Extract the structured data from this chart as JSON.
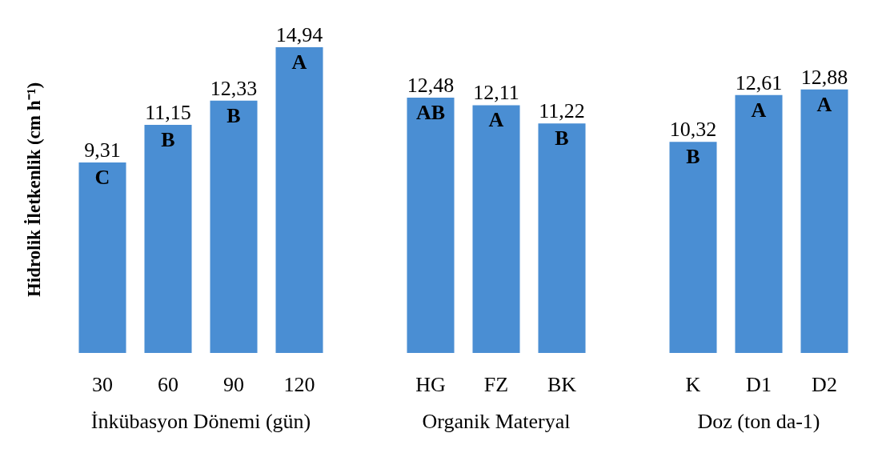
{
  "chart_data": {
    "type": "bar",
    "ylabel": "Hidrolik İletkenlik (cm h⁻¹)",
    "categories": [
      "30",
      "60",
      "90",
      "120",
      null,
      "HG",
      "FZ",
      "BK",
      null,
      "K",
      "D1",
      "D2"
    ],
    "values": [
      9.31,
      11.15,
      12.33,
      14.94,
      null,
      12.48,
      12.11,
      11.22,
      null,
      10.32,
      12.61,
      12.88
    ],
    "value_labels": [
      "9,31",
      "11,15",
      "12,33",
      "14,94",
      null,
      "12,48",
      "12,11",
      "11,22",
      null,
      "10,32",
      "12,61",
      "12,88"
    ],
    "color": "#4a8ed3",
    "annotations": [
      {
        "text": "C",
        "x": "30",
        "y": 9.31
      },
      {
        "text": "B",
        "x": "60",
        "y": 11.15
      },
      {
        "text": "B",
        "x": "90",
        "y": 12.33
      },
      {
        "text": "A",
        "x": "120",
        "y": 14.94
      },
      {
        "text": "AB",
        "x": "HG",
        "y": 12.48
      },
      {
        "text": "A",
        "x": "FZ",
        "y": 12.11
      },
      {
        "text": "B",
        "x": "BK",
        "y": 11.22
      },
      {
        "text": "B",
        "x": "K",
        "y": 10.32
      },
      {
        "text": "A",
        "x": "D1",
        "y": 12.61
      },
      {
        "text": "A",
        "x": "D2",
        "y": 12.88
      },
      "İnkübasyon Dönemi (gün)",
      "Organik Materyal",
      "Doz (ton da-1)"
    ]
  }
}
